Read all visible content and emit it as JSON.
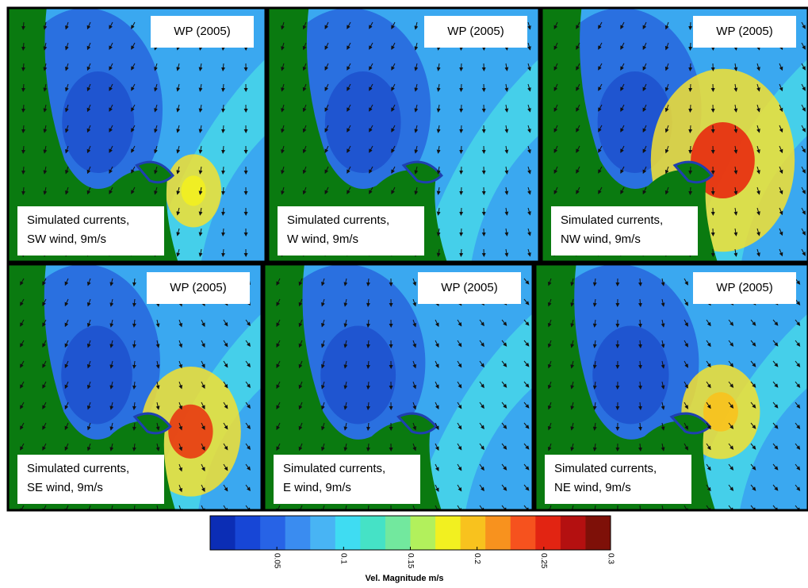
{
  "panels": [
    {
      "title": "WP (2005)",
      "caption": [
        "Simulated currents,",
        "SW wind, 9m/s"
      ]
    },
    {
      "title": "WP (2005)",
      "caption": [
        "Simulated currents,",
        "W wind, 9m/s"
      ]
    },
    {
      "title": "WP (2005)",
      "caption": [
        "Simulated currents,",
        "NW wind, 9m/s"
      ]
    },
    {
      "title": "WP (2005)",
      "caption": [
        "Simulated currents,",
        "SE wind, 9m/s"
      ]
    },
    {
      "title": "WP (2005)",
      "caption": [
        "Simulated currents,",
        "E wind, 9m/s"
      ]
    },
    {
      "title": "WP (2005)",
      "caption": [
        "Simulated currents,",
        "NE wind, 9m/s"
      ]
    }
  ],
  "colorbar": {
    "label": "Vel. Magnitude m/s",
    "lim": [
      0,
      0.3
    ],
    "ticks": [
      0.05,
      0.1,
      0.15,
      0.2,
      0.25,
      0.3
    ],
    "colors": [
      "#0b2db5",
      "#1746d6",
      "#2763e6",
      "#3a8cf0",
      "#48b4f4",
      "#3fdcf2",
      "#45e2c6",
      "#72e89e",
      "#b2f05c",
      "#f2f020",
      "#f8c21e",
      "#f8921e",
      "#f6521e",
      "#e22412",
      "#b41010",
      "#7e1008"
    ]
  }
}
